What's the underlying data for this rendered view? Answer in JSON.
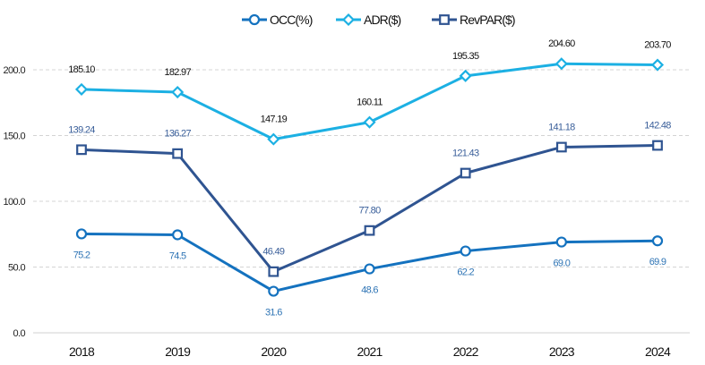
{
  "chart_data": {
    "type": "line",
    "title": "",
    "xlabel": "",
    "ylabel": "",
    "categories": [
      "2018",
      "2019",
      "2020",
      "2021",
      "2022",
      "2023",
      "2024"
    ],
    "ylim": [
      0,
      200
    ],
    "yticks": [
      0,
      50,
      100,
      150,
      200
    ],
    "ytick_labels": [
      "0.0",
      "50.0",
      "100.0",
      "150.0",
      "200.0"
    ],
    "grid": true,
    "legend_position": "top-center",
    "series": [
      {
        "name": "OCC(%)",
        "color": "#1472bf",
        "marker": "circle",
        "label_color": "#2e74b5",
        "label_position": "below",
        "values": [
          75.2,
          74.5,
          31.6,
          48.6,
          62.2,
          69.0,
          69.9
        ],
        "labels": [
          "75.2",
          "74.5",
          "31.6",
          "48.6",
          "62.2",
          "69.0",
          "69.9"
        ]
      },
      {
        "name": "ADR($)",
        "color": "#1cb0e3",
        "marker": "diamond",
        "label_color": "#111111",
        "label_position": "above",
        "values": [
          185.1,
          182.97,
          147.19,
          160.11,
          195.35,
          204.6,
          203.7
        ],
        "labels": [
          "185.10",
          "182.97",
          "147.19",
          "160.11",
          "195.35",
          "204.60",
          "203.70"
        ]
      },
      {
        "name": "RevPAR($)",
        "color": "#2f5491",
        "marker": "square",
        "label_color": "#3a5f9a",
        "label_position": "above",
        "values": [
          139.24,
          136.27,
          46.49,
          77.8,
          121.43,
          141.18,
          142.48
        ],
        "labels": [
          "139.24",
          "136.27",
          "46.49",
          "77.80",
          "121.43",
          "141.18",
          "142.48"
        ]
      }
    ]
  }
}
